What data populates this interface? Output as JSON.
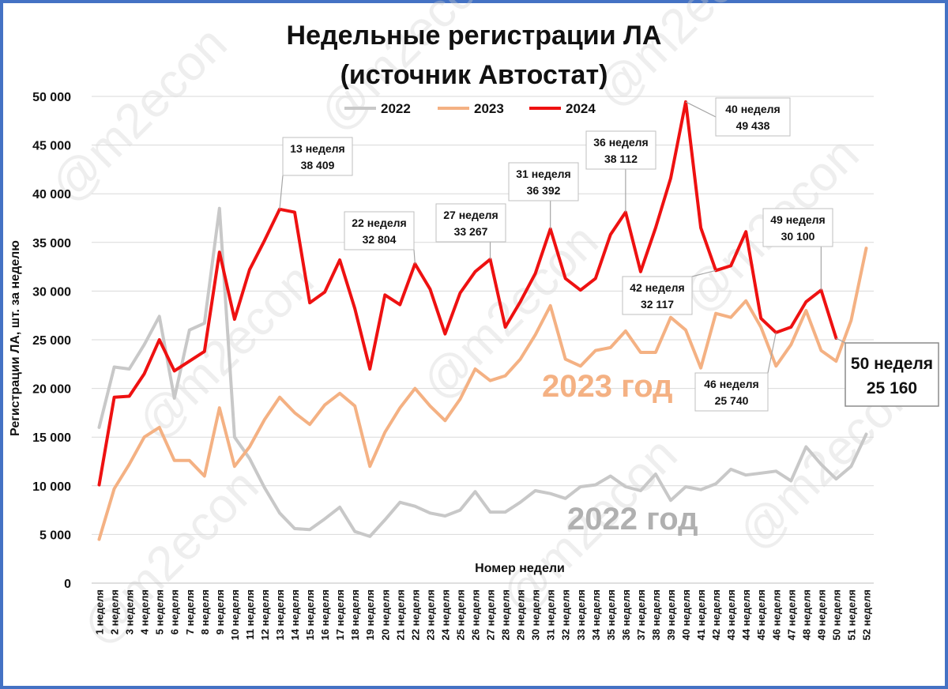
{
  "chart_data": {
    "type": "line",
    "title_line1": "Недельные регистрации ЛА",
    "title_line2": "(источник Автостат)",
    "xlabel": "Номер недели",
    "ylabel": "Регистрации ЛА, шт. за неделю",
    "ylim": [
      0,
      50000
    ],
    "yticks": [
      "0",
      "5 000",
      "10 000",
      "15 000",
      "20 000",
      "25 000",
      "30 000",
      "35 000",
      "40 000",
      "45 000",
      "50 000"
    ],
    "grid": "horizontal",
    "legend_position": "top",
    "categories": [
      "1 неделя",
      "2 неделя",
      "3 неделя",
      "4 неделя",
      "5 неделя",
      "6 неделя",
      "7 неделя",
      "8 неделя",
      "9 неделя",
      "10 неделя",
      "11 неделя",
      "12 неделя",
      "13 неделя",
      "14 неделя",
      "15 неделя",
      "16 неделя",
      "17 неделя",
      "18 неделя",
      "19 неделя",
      "20 неделя",
      "21 неделя",
      "22 неделя",
      "23 неделя",
      "24 неделя",
      "25 неделя",
      "26 неделя",
      "27 неделя",
      "28 неделя",
      "29 неделя",
      "30 неделя",
      "31 неделя",
      "32 неделя",
      "33 неделя",
      "34 неделя",
      "35 неделя",
      "36 неделя",
      "37 неделя",
      "38 неделя",
      "39 неделя",
      "40 неделя",
      "41 неделя",
      "42 неделя",
      "43 неделя",
      "44 неделя",
      "45 неделя",
      "46 неделя",
      "47 неделя",
      "48 неделя",
      "49 неделя",
      "50 неделя",
      "51 неделя",
      "52 неделя"
    ],
    "series": [
      {
        "name": "2022",
        "color": "#c8c8c8",
        "values": [
          16000,
          22200,
          22000,
          24500,
          27400,
          19000,
          26000,
          26700,
          38500,
          15000,
          12800,
          9800,
          7200,
          5600,
          5500,
          6600,
          7800,
          5300,
          4800,
          6500,
          8300,
          7900,
          7200,
          6900,
          7500,
          9400,
          7300,
          7300,
          8300,
          9500,
          9200,
          8700,
          9900,
          10100,
          11000,
          9900,
          9500,
          11200,
          8500,
          9900,
          9600,
          10200,
          11700,
          11100,
          11300,
          11500,
          10500,
          14000,
          12200,
          10700,
          12000,
          15300
        ]
      },
      {
        "name": "2023",
        "color": "#f4b183",
        "values": [
          4500,
          9700,
          12200,
          15000,
          16000,
          12600,
          12600,
          11000,
          18000,
          12000,
          14000,
          16800,
          19100,
          17500,
          16300,
          18300,
          19500,
          18200,
          12000,
          15500,
          18000,
          20000,
          18200,
          16700,
          18900,
          22000,
          20800,
          21300,
          23000,
          25500,
          28500,
          23000,
          22300,
          23900,
          24200,
          25900,
          23700,
          23700,
          27300,
          26000,
          22100,
          27700,
          27300,
          29000,
          26300,
          22300,
          24500,
          28000,
          23900,
          22800,
          27000,
          34400
        ]
      },
      {
        "name": "2024",
        "color": "#ee1111",
        "values": [
          10100,
          19100,
          19200,
          21500,
          25000,
          21800,
          22800,
          23800,
          34000,
          27100,
          32200,
          35200,
          38409,
          38100,
          28800,
          29900,
          33200,
          28200,
          22000,
          29600,
          28600,
          32804,
          30200,
          25600,
          29800,
          32000,
          33267,
          26300,
          28900,
          31800,
          36392,
          31300,
          30100,
          31300,
          35800,
          38112,
          32000,
          36500,
          41600,
          49438,
          36500,
          32117,
          32600,
          36100,
          27200,
          25740,
          26300,
          28900,
          30100,
          25160,
          null,
          null
        ]
      }
    ],
    "annotations": [
      {
        "week": 13,
        "line1": "13 неделя",
        "line2": "38 409"
      },
      {
        "week": 22,
        "line1": "22 неделя",
        "line2": "32 804"
      },
      {
        "week": 27,
        "line1": "27 неделя",
        "line2": "33 267"
      },
      {
        "week": 31,
        "line1": "31 неделя",
        "line2": "36 392"
      },
      {
        "week": 36,
        "line1": "36 неделя",
        "line2": "38 112"
      },
      {
        "week": 40,
        "line1": "40 неделя",
        "line2": "49 438"
      },
      {
        "week": 42,
        "line1": "42 неделя",
        "line2": "32 117"
      },
      {
        "week": 46,
        "line1": "46 неделя",
        "line2": "25 740"
      },
      {
        "week": 49,
        "line1": "49 неделя",
        "line2": "30 100"
      },
      {
        "week": 50,
        "line1": "50 неделя",
        "line2": "25 160"
      }
    ],
    "year_labels": [
      {
        "text": "2023 год",
        "color": "#f4b183"
      },
      {
        "text": "2022 год",
        "color": "#b0b0b0"
      }
    ],
    "watermark": "@m2econ"
  }
}
